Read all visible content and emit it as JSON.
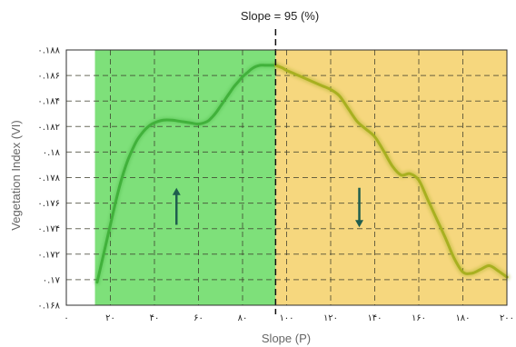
{
  "chart_data": {
    "type": "line",
    "title": "Slope  = 95 (%)",
    "xlabel": "Slope (P)",
    "ylabel": "Vegetation Index (VI)",
    "xlim": [
      0,
      200
    ],
    "ylim": [
      0.168,
      0.188
    ],
    "x_ticks": [
      {
        "value": 0,
        "label": "۰"
      },
      {
        "value": 20,
        "label": "۲۰"
      },
      {
        "value": 40,
        "label": "۴۰"
      },
      {
        "value": 60,
        "label": "۶۰"
      },
      {
        "value": 80,
        "label": "۸۰"
      },
      {
        "value": 100,
        "label": "۱۰۰"
      },
      {
        "value": 120,
        "label": "۱۲۰"
      },
      {
        "value": 140,
        "label": "۱۴۰"
      },
      {
        "value": 160,
        "label": "۱۶۰"
      },
      {
        "value": 180,
        "label": "۱۸۰"
      },
      {
        "value": 200,
        "label": "۲۰۰"
      }
    ],
    "y_ticks": [
      {
        "value": 0.168,
        "label": "۰.۱۶۸"
      },
      {
        "value": 0.17,
        "label": "۰.۱۷"
      },
      {
        "value": 0.172,
        "label": "۰.۱۷۲"
      },
      {
        "value": 0.174,
        "label": "۰.۱۷۴"
      },
      {
        "value": 0.176,
        "label": "۰.۱۷۶"
      },
      {
        "value": 0.178,
        "label": "۰.۱۷۸"
      },
      {
        "value": 0.18,
        "label": "۰.۱۸"
      },
      {
        "value": 0.182,
        "label": "۰.۱۸۲"
      },
      {
        "value": 0.184,
        "label": "۰.۱۸۴"
      },
      {
        "value": 0.186,
        "label": "۰.۱۸۶"
      },
      {
        "value": 0.188,
        "label": "۰.۱۸۸"
      }
    ],
    "threshold_x": 95,
    "regions": [
      {
        "x_start": 13,
        "x_end": 95,
        "color": "#7ee07a"
      },
      {
        "x_start": 95,
        "x_end": 200,
        "color": "#f6d77e"
      }
    ],
    "arrows": [
      {
        "direction": "up",
        "x": 50,
        "y_low": 0.1743,
        "y_high": 0.1772,
        "color": "#1f5e4e"
      },
      {
        "direction": "down",
        "x": 133,
        "y_low": 0.1741,
        "y_high": 0.1772,
        "color": "#1f5e4e"
      }
    ],
    "series": [
      {
        "color_left": "#41b13b",
        "color_right": "#a8b020",
        "x": [
          14,
          16,
          18,
          20,
          22,
          24,
          26,
          28,
          30,
          32,
          34,
          36,
          38,
          40,
          44,
          48,
          52,
          56,
          60,
          64,
          66,
          68,
          70,
          72,
          74,
          76,
          78,
          80,
          82,
          84,
          86,
          88,
          90,
          92,
          95,
          98,
          100,
          104,
          108,
          112,
          116,
          120,
          124,
          128,
          132,
          136,
          140,
          144,
          148,
          152,
          156,
          160,
          164,
          168,
          172,
          176,
          180,
          184,
          188,
          192,
          196,
          200
        ],
        "y": [
          0.1698,
          0.1713,
          0.1728,
          0.1743,
          0.1758,
          0.1772,
          0.1784,
          0.1794,
          0.1802,
          0.1809,
          0.1814,
          0.1818,
          0.1821,
          0.1823,
          0.1825,
          0.1825,
          0.1824,
          0.1823,
          0.1822,
          0.1824,
          0.1827,
          0.1831,
          0.1836,
          0.1841,
          0.1846,
          0.1851,
          0.1855,
          0.1859,
          0.1862,
          0.1865,
          0.1867,
          0.1868,
          0.1868,
          0.1868,
          0.1868,
          0.1866,
          0.1864,
          0.1861,
          0.1858,
          0.1855,
          0.1852,
          0.1849,
          0.1844,
          0.1834,
          0.1824,
          0.1818,
          0.1812,
          0.1801,
          0.1789,
          0.1782,
          0.1783,
          0.1778,
          0.1763,
          0.1748,
          0.1733,
          0.1717,
          0.1706,
          0.1705,
          0.1708,
          0.1711,
          0.1707,
          0.1702
        ]
      }
    ],
    "grid": true,
    "grid_style": "dashed"
  }
}
